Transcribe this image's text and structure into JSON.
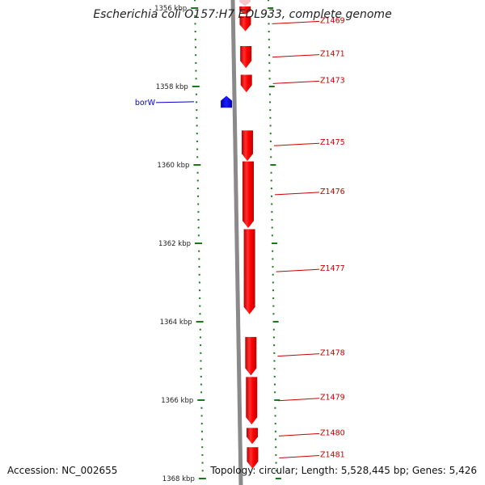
{
  "title": "Escherichia coli O157:H7 EDL933, complete genome",
  "footer": {
    "accession_label": "Accession:",
    "accession": "NC_002655",
    "topology_label": "Topology:",
    "topology": "circular",
    "length_label": "Length:",
    "length": "5,528,445 bp",
    "genes_label": "Genes:",
    "genes": "5,426"
  },
  "colors": {
    "backbone": "#8a8a8a",
    "tick": "#1a7a1a",
    "forward_gene": "#ff0000",
    "reverse_gene": "#0000ff",
    "faded_gene": "#f4c8cc",
    "partial_gene": "#ff00cc",
    "forward_label": "#cc0000",
    "reverse_label": "#0000cc"
  },
  "chart_data": {
    "type": "genome-map",
    "region_kbp": [
      1355.7,
      1368.0
    ],
    "scale_labels": [
      {
        "kbp": 1356,
        "text": "1356 kbp"
      },
      {
        "kbp": 1358,
        "text": "1358 kbp"
      },
      {
        "kbp": 1360,
        "text": "1360 kbp"
      },
      {
        "kbp": 1362,
        "text": "1362 kbp"
      },
      {
        "kbp": 1364,
        "text": "1364 kbp"
      },
      {
        "kbp": 1366,
        "text": "1366 kbp"
      },
      {
        "kbp": 1368,
        "text": "1368 kbp"
      }
    ],
    "genes": [
      {
        "name": "",
        "strand": "+",
        "start_kbp": 1355.7,
        "end_kbp": 1355.95,
        "style": "faded"
      },
      {
        "name": "",
        "strand": "+",
        "start_kbp": 1355.7,
        "end_kbp": 1355.76,
        "style": "partial"
      },
      {
        "name": "",
        "strand": "+",
        "start_kbp": 1355.96,
        "end_kbp": 1356.16,
        "style": "normal"
      },
      {
        "name": "Z1469",
        "strand": "+",
        "start_kbp": 1356.21,
        "end_kbp": 1356.59,
        "style": "normal"
      },
      {
        "name": "Z1471",
        "strand": "+",
        "start_kbp": 1356.97,
        "end_kbp": 1357.53,
        "style": "normal"
      },
      {
        "name": "Z1473",
        "strand": "+",
        "start_kbp": 1357.7,
        "end_kbp": 1358.15,
        "style": "normal"
      },
      {
        "name": "borW",
        "strand": "-",
        "start_kbp": 1358.24,
        "end_kbp": 1358.54,
        "style": "normal"
      },
      {
        "name": "Z1475",
        "strand": "+",
        "start_kbp": 1359.12,
        "end_kbp": 1359.9,
        "style": "normal"
      },
      {
        "name": "Z1476",
        "strand": "+",
        "start_kbp": 1359.91,
        "end_kbp": 1361.61,
        "style": "normal"
      },
      {
        "name": "Z1477",
        "strand": "+",
        "start_kbp": 1361.64,
        "end_kbp": 1363.81,
        "style": "normal"
      },
      {
        "name": "Z1478",
        "strand": "+",
        "start_kbp": 1364.39,
        "end_kbp": 1365.37,
        "style": "normal"
      },
      {
        "name": "Z1479",
        "strand": "+",
        "start_kbp": 1365.41,
        "end_kbp": 1366.62,
        "style": "normal"
      },
      {
        "name": "Z1480",
        "strand": "+",
        "start_kbp": 1366.71,
        "end_kbp": 1367.12,
        "style": "normal"
      },
      {
        "name": "Z1481",
        "strand": "+",
        "start_kbp": 1367.2,
        "end_kbp": 1367.75,
        "style": "normal"
      }
    ]
  }
}
